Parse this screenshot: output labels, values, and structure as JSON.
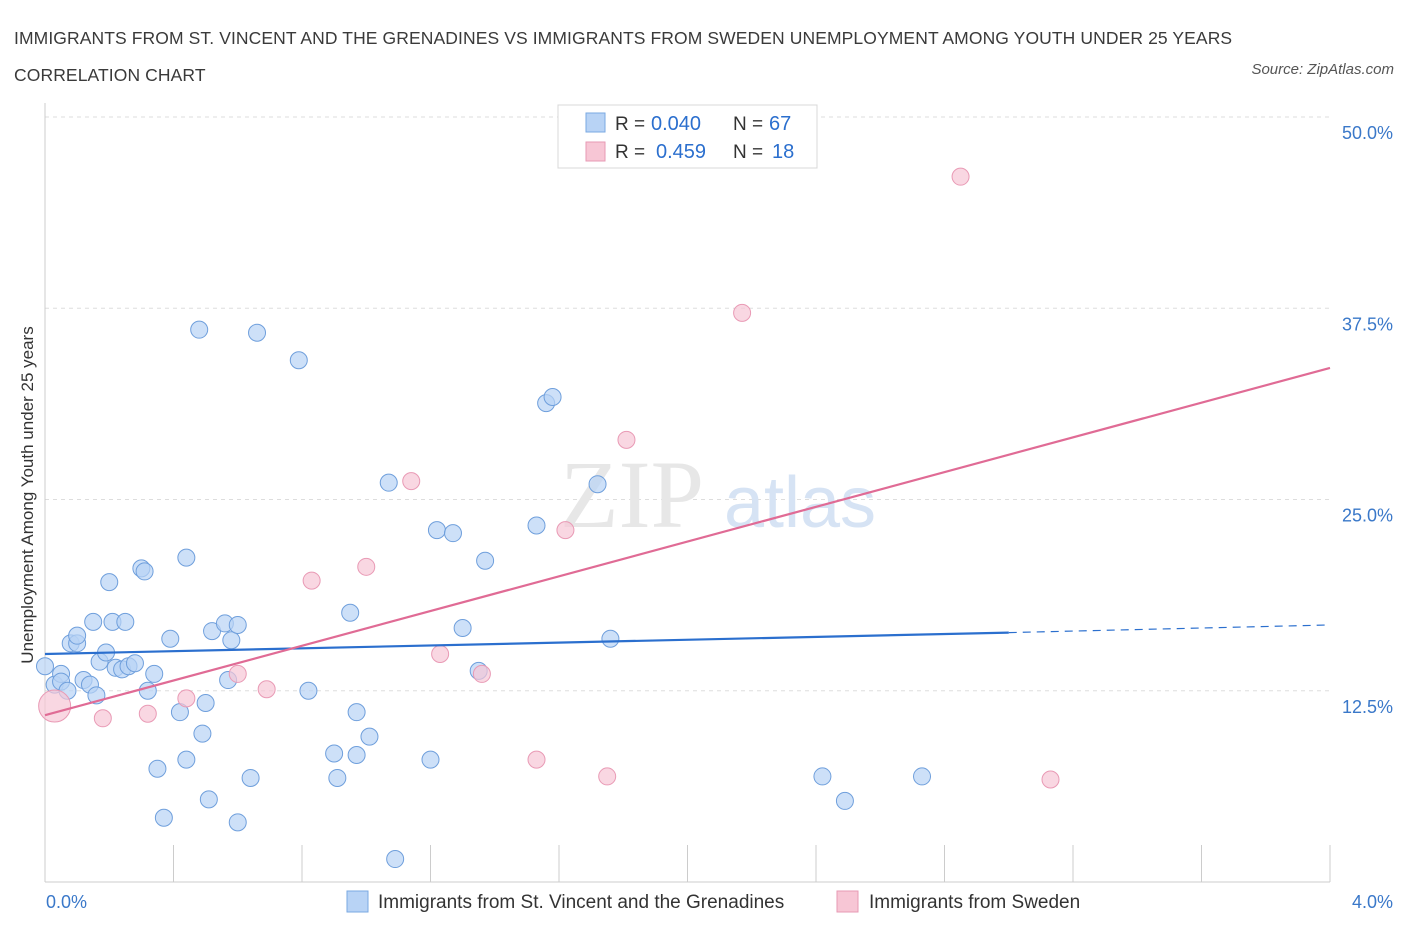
{
  "title": "IMMIGRANTS FROM ST. VINCENT AND THE GRENADINES VS IMMIGRANTS FROM SWEDEN UNEMPLOYMENT AMONG YOUTH UNDER 25 YEARS CORRELATION CHART",
  "source": "Source: ZipAtlas.com",
  "watermark": {
    "zip": "ZIP",
    "atlas": "atlas"
  },
  "colors": {
    "blue": "#2b6fce",
    "blue_fill": "#b8d3f5",
    "pink": "#e06b95",
    "pink_fill": "#f7c6d5",
    "grid": "#dddddd",
    "tick_text": "#3a78c9"
  },
  "stats": [
    {
      "r_label": "R =",
      "r": "0.040",
      "n_label": "N =",
      "n": "67"
    },
    {
      "r_label": "R =",
      "r": "0.459",
      "n_label": "N =",
      "n": "18"
    }
  ],
  "chart_data": {
    "type": "scatter",
    "title": "IMMIGRANTS FROM ST. VINCENT AND THE GRENADINES VS IMMIGRANTS FROM SWEDEN UNEMPLOYMENT AMONG YOUTH UNDER 25 YEARS CORRELATION CHART",
    "xlabel": "",
    "ylabel": "Unemployment Among Youth under 25 years",
    "xlim": [
      0,
      4
    ],
    "ylim": [
      0,
      50
    ],
    "x_tick_labels": [
      "0.0%",
      "4.0%"
    ],
    "y_ticks": [
      12.5,
      25,
      37.5,
      50
    ],
    "y_tick_labels": [
      "12.5%",
      "25.0%",
      "37.5%",
      "50.0%"
    ],
    "grid": true,
    "legend_position": "bottom",
    "series": [
      {
        "name": "Immigrants from St. Vincent and the Grenadines",
        "color": "#2b6fce",
        "r": 0.04,
        "n": 67,
        "trend": {
          "x": [
            0,
            3.0
          ],
          "y": [
            14.9,
            16.3
          ],
          "dashed_to": [
            4.0,
            16.8
          ]
        },
        "points": [
          [
            0.0,
            14.1
          ],
          [
            0.03,
            12.9
          ],
          [
            0.05,
            13.6
          ],
          [
            0.05,
            13.1
          ],
          [
            0.07,
            12.5
          ],
          [
            0.08,
            15.6
          ],
          [
            0.1,
            15.6
          ],
          [
            0.1,
            16.1
          ],
          [
            0.12,
            13.2
          ],
          [
            0.14,
            12.9
          ],
          [
            0.15,
            17.0
          ],
          [
            0.16,
            12.2
          ],
          [
            0.17,
            14.4
          ],
          [
            0.19,
            15.0
          ],
          [
            0.2,
            19.6
          ],
          [
            0.21,
            17.0
          ],
          [
            0.22,
            14.0
          ],
          [
            0.24,
            13.9
          ],
          [
            0.25,
            17.0
          ],
          [
            0.26,
            14.1
          ],
          [
            0.28,
            14.3
          ],
          [
            0.3,
            20.5
          ],
          [
            0.31,
            20.3
          ],
          [
            0.32,
            12.5
          ],
          [
            0.34,
            13.6
          ],
          [
            0.35,
            7.4
          ],
          [
            0.37,
            4.2
          ],
          [
            0.39,
            15.9
          ],
          [
            0.42,
            11.1
          ],
          [
            0.44,
            21.2
          ],
          [
            0.44,
            8.0
          ],
          [
            0.48,
            36.1
          ],
          [
            0.49,
            9.7
          ],
          [
            0.5,
            11.7
          ],
          [
            0.51,
            5.4
          ],
          [
            0.52,
            16.4
          ],
          [
            0.56,
            16.9
          ],
          [
            0.57,
            13.2
          ],
          [
            0.58,
            15.8
          ],
          [
            0.6,
            16.8
          ],
          [
            0.6,
            3.9
          ],
          [
            0.64,
            6.8
          ],
          [
            0.66,
            35.9
          ],
          [
            0.79,
            34.1
          ],
          [
            0.82,
            12.5
          ],
          [
            0.9,
            8.4
          ],
          [
            0.91,
            6.8
          ],
          [
            0.95,
            17.6
          ],
          [
            0.97,
            8.3
          ],
          [
            0.97,
            11.1
          ],
          [
            1.01,
            9.5
          ],
          [
            1.07,
            26.1
          ],
          [
            1.09,
            1.5
          ],
          [
            1.2,
            8.0
          ],
          [
            1.22,
            23.0
          ],
          [
            1.27,
            22.8
          ],
          [
            1.3,
            16.6
          ],
          [
            1.35,
            13.8
          ],
          [
            1.37,
            21.0
          ],
          [
            1.53,
            23.3
          ],
          [
            1.56,
            31.3
          ],
          [
            1.58,
            31.7
          ],
          [
            1.72,
            26.0
          ],
          [
            1.76,
            15.9
          ],
          [
            2.42,
            6.9
          ],
          [
            2.49,
            5.3
          ],
          [
            2.73,
            6.9
          ]
        ]
      },
      {
        "name": "Immigrants from Sweden",
        "color": "#e06b95",
        "r": 0.459,
        "n": 18,
        "trend": {
          "x": [
            0,
            4.0
          ],
          "y": [
            10.9,
            33.6
          ]
        },
        "points": [
          [
            0.03,
            11.5
          ],
          [
            0.18,
            10.7
          ],
          [
            0.32,
            11.0
          ],
          [
            0.44,
            12.0
          ],
          [
            0.6,
            13.6
          ],
          [
            0.69,
            12.6
          ],
          [
            0.83,
            19.7
          ],
          [
            1.0,
            20.6
          ],
          [
            1.14,
            26.2
          ],
          [
            1.23,
            14.9
          ],
          [
            1.36,
            13.6
          ],
          [
            1.53,
            8.0
          ],
          [
            1.62,
            23.0
          ],
          [
            1.75,
            6.9
          ],
          [
            1.81,
            28.9
          ],
          [
            2.17,
            37.2
          ],
          [
            2.85,
            46.1
          ],
          [
            3.13,
            6.7
          ]
        ]
      }
    ]
  }
}
